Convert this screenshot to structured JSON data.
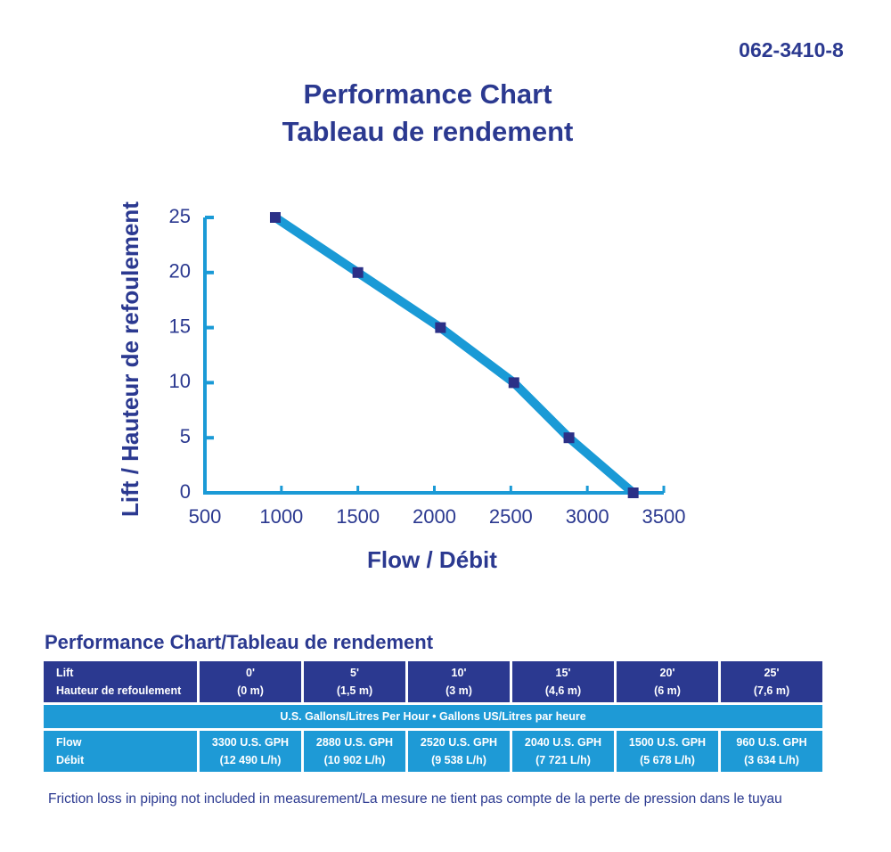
{
  "product_code": "062-3410-8",
  "chart_data": {
    "type": "line",
    "title": "Performance Chart",
    "subtitle": "Tableau de rendement",
    "x_label": "Flow / Débit",
    "y_label": "Lift / Hauteur de refoulement",
    "x": [
      960,
      1500,
      2040,
      2520,
      2880,
      3300
    ],
    "series": [
      {
        "color": "#1a9ad6",
        "marker_color": "#2b3087",
        "values": [
          25,
          20,
          15,
          10,
          5,
          0
        ]
      }
    ],
    "xlim": [
      500,
      3500
    ],
    "xticks": [
      500,
      1000,
      1500,
      2000,
      2500,
      3000,
      3500
    ],
    "ylim": [
      0,
      25
    ],
    "yticks": [
      0,
      5,
      10,
      15,
      20,
      25
    ],
    "grid": false
  },
  "table": {
    "title": "Performance Chart/Tableau de rendement",
    "header": {
      "label": [
        "Lift",
        "Hauteur de refoulement"
      ],
      "cells": [
        [
          "0'",
          "(0 m)"
        ],
        [
          "5'",
          "(1,5 m)"
        ],
        [
          "10'",
          "(3 m)"
        ],
        [
          "15'",
          "(4,6 m)"
        ],
        [
          "20'",
          "(6 m)"
        ],
        [
          "25'",
          "(7,6 m)"
        ]
      ]
    },
    "banner": "U.S. Gallons/Litres Per Hour • Gallons US/Litres par heure",
    "flow": {
      "label": [
        "Flow",
        "Débit"
      ],
      "cells": [
        [
          "3300 U.S. GPH",
          "(12 490 L/h)"
        ],
        [
          "2880 U.S. GPH",
          "(10 902 L/h)"
        ],
        [
          "2520 U.S. GPH",
          "(9 538 L/h)"
        ],
        [
          "2040 U.S. GPH",
          "(7 721 L/h)"
        ],
        [
          "1500 U.S. GPH",
          "(5 678 L/h)"
        ],
        [
          "960 U.S. GPH",
          "(3 634 L/h)"
        ]
      ]
    },
    "footnote": "Friction loss in piping not included in measurement/La mesure ne tient pas compte de la perte de pression dans le tuyau"
  }
}
